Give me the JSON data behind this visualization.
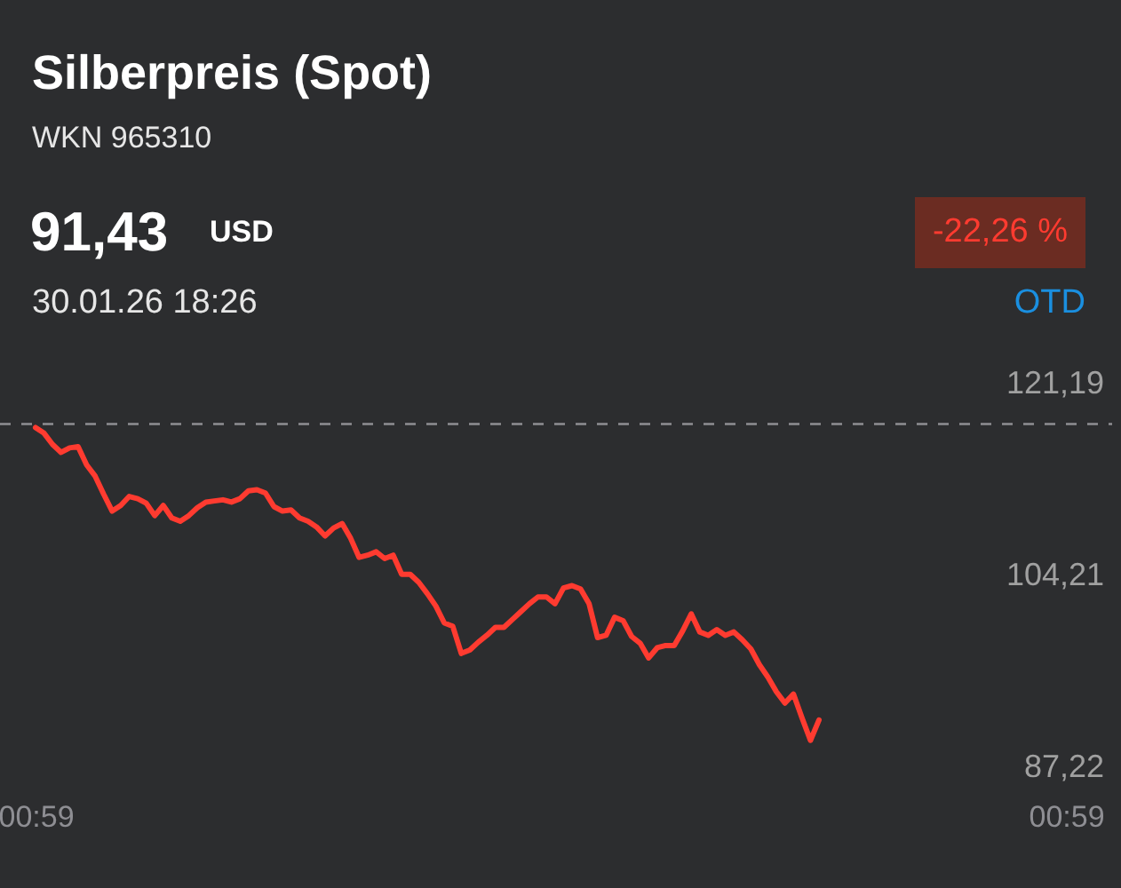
{
  "chart_data": {
    "type": "line",
    "title": "Silberpreis (Spot)",
    "subtitle": "WKN 965310",
    "annotations": [
      "91,43",
      "USD",
      "30.01.26 18:26",
      "-22,26 %",
      "OTD"
    ],
    "categories": [
      "00:59",
      null,
      null,
      null,
      null,
      null,
      null,
      null,
      null,
      null,
      null,
      null,
      null,
      null,
      null,
      null,
      null,
      null,
      null,
      null,
      null,
      null,
      null,
      null,
      null,
      null,
      null,
      null,
      null,
      null,
      null,
      null,
      null,
      null,
      null,
      null,
      null,
      null,
      null,
      null,
      null,
      null,
      null,
      null,
      null,
      null,
      null,
      null,
      null,
      null,
      null,
      null,
      null,
      null,
      null,
      null,
      null,
      null,
      null,
      null,
      null,
      null,
      null,
      null,
      null,
      null,
      null,
      null,
      null,
      null,
      null,
      null,
      null,
      null,
      null,
      null,
      null,
      null,
      null,
      null,
      null,
      null,
      null,
      null,
      null,
      null,
      null,
      null,
      null,
      null,
      null,
      null,
      null,
      null,
      null,
      null,
      null,
      null,
      null,
      null,
      null,
      null,
      null,
      null,
      null,
      null,
      null,
      null,
      null,
      null,
      null,
      null,
      null,
      null,
      null,
      null,
      null,
      null,
      null,
      null,
      null,
      "00:59"
    ],
    "series": [
      {
        "color": "#ff3b30",
        "values": [
          117.3,
          116.8,
          115.8,
          115.1,
          115.5,
          115.6,
          114.0,
          113.0,
          111.4,
          109.9,
          110.4,
          111.2,
          111.0,
          110.6,
          109.5,
          110.4,
          109.3,
          109.0,
          109.5,
          110.2,
          110.7,
          110.8,
          110.9,
          110.7,
          111.0,
          111.7,
          111.8,
          111.5,
          110.3,
          109.9,
          110.0,
          109.3,
          109.0,
          108.5,
          107.7,
          108.4,
          108.8,
          107.5,
          105.8,
          106.0,
          106.3,
          105.7,
          106.0,
          104.3,
          104.3,
          103.6,
          102.6,
          101.5,
          100.0,
          99.7,
          97.3,
          97.6,
          98.3,
          98.9,
          99.6,
          99.6,
          100.3,
          101.0,
          101.7,
          102.3,
          102.3,
          101.7,
          103.1,
          103.3,
          103.0,
          101.7,
          98.7,
          98.9,
          100.5,
          100.2,
          98.8,
          98.2,
          96.9,
          97.8,
          98.0,
          98.0,
          99.3,
          100.8,
          99.2,
          98.9,
          99.4,
          98.9,
          99.2,
          98.5,
          97.7,
          96.3,
          95.2,
          93.9,
          92.9,
          93.7,
          91.6,
          89.6,
          91.4,
          null,
          null,
          null,
          null,
          null,
          null,
          null,
          null,
          null,
          null,
          null,
          null,
          null,
          null,
          null,
          null,
          null,
          null,
          null,
          null,
          null,
          null,
          null,
          null,
          null,
          null,
          null,
          null,
          null
        ]
      }
    ],
    "ylim": [
      87.22,
      121.19
    ],
    "yticks": [
      {
        "value": 87.22,
        "label": "87,22"
      },
      {
        "value": 104.21,
        "label": "104,21"
      },
      {
        "value": 121.19,
        "label": "121,19"
      }
    ],
    "ref_lines": [
      {
        "axis": "y",
        "value": 117.61,
        "color": "#8e8e93",
        "line_style": "dashed"
      }
    ]
  }
}
